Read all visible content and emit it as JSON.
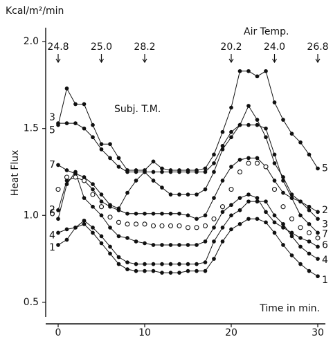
{
  "chart_data": {
    "type": "line",
    "y_unit": "Kcal/m²/min",
    "y_label": "Heat Flux",
    "x_label": "Time in min.",
    "x": [
      0,
      1,
      2,
      3,
      4,
      5,
      6,
      7,
      8,
      9,
      10,
      11,
      12,
      13,
      14,
      15,
      16,
      17,
      18,
      19,
      20,
      21,
      22,
      23,
      24,
      25,
      26,
      27,
      28,
      29,
      30
    ],
    "series": [
      {
        "name": "1",
        "color": "#111111",
        "marker": "filled",
        "values": [
          0.83,
          0.86,
          0.93,
          0.95,
          0.9,
          0.84,
          0.78,
          0.72,
          0.69,
          0.68,
          0.68,
          0.68,
          0.67,
          0.67,
          0.67,
          0.68,
          0.68,
          0.68,
          0.75,
          0.85,
          0.92,
          0.95,
          0.98,
          0.98,
          0.96,
          0.9,
          0.83,
          0.77,
          0.72,
          0.68,
          0.65
        ]
      },
      {
        "name": "2",
        "color": "#111111",
        "marker": "filled",
        "values": [
          1.03,
          1.2,
          1.22,
          1.2,
          1.15,
          1.08,
          1.05,
          1.03,
          1.01,
          1.01,
          1.01,
          1.01,
          1.01,
          1.01,
          1.01,
          1.0,
          0.98,
          1.0,
          1.1,
          1.2,
          1.28,
          1.32,
          1.33,
          1.33,
          1.28,
          1.2,
          1.13,
          1.1,
          1.08,
          1.05,
          1.02
        ]
      },
      {
        "name": "3",
        "color": "#111111",
        "marker": "filled",
        "values": [
          1.53,
          1.53,
          1.53,
          1.5,
          1.45,
          1.38,
          1.33,
          1.28,
          1.25,
          1.25,
          1.25,
          1.25,
          1.25,
          1.25,
          1.25,
          1.25,
          1.25,
          1.25,
          1.3,
          1.4,
          1.48,
          1.52,
          1.63,
          1.55,
          1.45,
          1.3,
          1.22,
          1.12,
          1.08,
          1.03,
          0.98
        ]
      },
      {
        "name": "4",
        "color": "#111111",
        "marker": "filled",
        "values": [
          0.9,
          0.92,
          0.93,
          0.97,
          0.93,
          0.88,
          0.82,
          0.76,
          0.73,
          0.72,
          0.72,
          0.72,
          0.72,
          0.72,
          0.72,
          0.72,
          0.72,
          0.73,
          0.85,
          0.93,
          1.0,
          1.03,
          1.08,
          1.08,
          1.08,
          1.0,
          0.95,
          0.88,
          0.82,
          0.78,
          0.75
        ]
      },
      {
        "name": "5",
        "color": "#111111",
        "marker": "filled",
        "values": [
          1.52,
          1.73,
          1.64,
          1.64,
          1.52,
          1.41,
          1.41,
          1.33,
          1.26,
          1.26,
          1.26,
          1.31,
          1.27,
          1.26,
          1.26,
          1.26,
          1.26,
          1.27,
          1.35,
          1.48,
          1.62,
          1.83,
          1.83,
          1.8,
          1.83,
          1.65,
          1.55,
          1.47,
          1.42,
          1.35,
          1.27
        ]
      },
      {
        "name": "6",
        "color": "#111111",
        "marker": "filled",
        "values": [
          0.98,
          1.18,
          1.25,
          1.1,
          1.05,
          1.0,
          0.93,
          0.88,
          0.87,
          0.85,
          0.84,
          0.83,
          0.83,
          0.83,
          0.83,
          0.83,
          0.83,
          0.85,
          0.93,
          1.02,
          1.06,
          1.1,
          1.12,
          1.1,
          1.02,
          0.96,
          0.93,
          0.9,
          0.87,
          0.85,
          0.82
        ]
      },
      {
        "name": "7",
        "color": "#111111",
        "marker": "filled",
        "values": [
          1.29,
          1.26,
          1.24,
          1.22,
          1.18,
          1.12,
          1.06,
          1.04,
          1.13,
          1.2,
          1.25,
          1.2,
          1.16,
          1.12,
          1.12,
          1.12,
          1.12,
          1.15,
          1.25,
          1.38,
          1.45,
          1.52,
          1.52,
          1.52,
          1.5,
          1.35,
          1.2,
          1.1,
          1.0,
          0.95,
          0.9
        ]
      },
      {
        "name": "Subj. T.M.",
        "color": "#111111",
        "marker": "open",
        "values": [
          1.15,
          1.22,
          1.22,
          1.2,
          1.12,
          1.05,
          0.99,
          0.96,
          0.95,
          0.95,
          0.95,
          0.94,
          0.94,
          0.94,
          0.94,
          0.93,
          0.93,
          0.94,
          0.98,
          1.05,
          1.15,
          1.25,
          1.3,
          1.3,
          1.28,
          1.15,
          1.05,
          0.98,
          0.93,
          0.9,
          0.87
        ]
      }
    ],
    "air_temp": {
      "label": "Air Temp.",
      "points": [
        {
          "x": 0,
          "value": 24.8
        },
        {
          "x": 5,
          "value": 25,
          "label": "25.0"
        },
        {
          "x": 10,
          "value": 28.2
        },
        {
          "x": 20,
          "value": 20.2
        },
        {
          "x": 25,
          "value": 24,
          "label": "24.0"
        },
        {
          "x": 30,
          "value": 26.8
        }
      ]
    },
    "xlim": [
      -1.44,
      30.88
    ],
    "xticks": [
      0,
      10,
      20,
      30
    ],
    "ylim": [
      0.376,
      2.08
    ],
    "yticks": [
      0.5,
      {
        "value": 1,
        "label": "1.0"
      },
      1.5,
      {
        "value": 2,
        "label": "2.0"
      }
    ],
    "grid": false
  }
}
